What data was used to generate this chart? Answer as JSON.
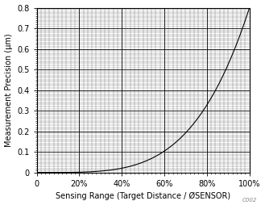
{
  "title": "",
  "xlabel": "Sensing Range (Target Distance / ØSENSOR)",
  "ylabel": "Measurement Precision (µm)",
  "xlim": [
    0,
    1.0
  ],
  "ylim": [
    0,
    0.8
  ],
  "xticks": [
    0,
    0.2,
    0.4,
    0.6,
    0.8,
    1.0
  ],
  "xticklabels": [
    "0",
    "20%",
    "40%",
    "60%",
    "80%",
    "100%"
  ],
  "yticks": [
    0,
    0.1,
    0.2,
    0.3,
    0.4,
    0.5,
    0.6,
    0.7,
    0.8
  ],
  "yticklabels": [
    "0",
    "0.1",
    "0.2",
    "0.3",
    "0.4",
    "0.5",
    "0.6",
    "0.7",
    "0.8"
  ],
  "line_color": "#000000",
  "background_color": "#ffffff",
  "grid_major_color": "#000000",
  "grid_minor_color": "#000000",
  "watermark": "C002",
  "font_color": "#000000",
  "xlabel_color": "#000000",
  "ylabel_color": "#000000",
  "tick_label_color": "#000000"
}
